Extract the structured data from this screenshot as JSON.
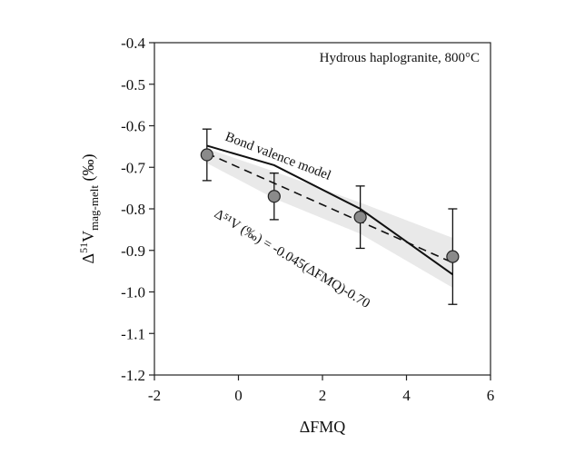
{
  "chart_data": {
    "type": "scatter",
    "title": "",
    "xlabel": "ΔFMQ",
    "ylabel": {
      "main": "Δ",
      "sup": "51",
      "v": "V",
      "sub": "mag-melt",
      "unit": " (‰)"
    },
    "xlim": [
      -2,
      6
    ],
    "ylim": [
      -1.2,
      -0.4
    ],
    "x_ticks": [
      -2,
      0,
      2,
      4,
      6
    ],
    "y_ticks": [
      -0.4,
      -0.5,
      -0.6,
      -0.7,
      -0.8,
      -0.9,
      -1.0,
      -1.1,
      -1.2
    ],
    "x_tick_labels": [
      "-2",
      "0",
      "2",
      "4",
      "6"
    ],
    "y_tick_labels": [
      "-0.4",
      "-0.5",
      "-0.6",
      "-0.7",
      "-0.8",
      "-0.9",
      "-1.0",
      "-1.1",
      "-1.2"
    ],
    "grid": false,
    "inset_label": "Hydrous haplogranite, 800°C",
    "points": [
      {
        "x": -0.75,
        "y": -0.67,
        "err": 0.062
      },
      {
        "x": 0.85,
        "y": -0.77,
        "err": 0.056
      },
      {
        "x": 2.9,
        "y": -0.82,
        "err": 0.075
      },
      {
        "x": 5.1,
        "y": -0.915,
        "err": 0.115
      }
    ],
    "bond_valence_model": {
      "label": "Bond valence model",
      "x": [
        -0.75,
        0.85,
        2.9,
        5.1
      ],
      "y": [
        -0.648,
        -0.695,
        -0.8,
        -0.958
      ]
    },
    "fit_line": {
      "label": "Δ⁵¹V (‰) = -0.045(ΔFMQ)-0.70",
      "slope": -0.045,
      "intercept": -0.7,
      "x_range": [
        -0.75,
        5.1
      ]
    },
    "confidence_band": {
      "x": [
        -0.75,
        0.85,
        2.9,
        5.1
      ],
      "upper": [
        -0.655,
        -0.71,
        -0.785,
        -0.87
      ],
      "lower": [
        -0.69,
        -0.775,
        -0.86,
        -0.99
      ]
    }
  }
}
